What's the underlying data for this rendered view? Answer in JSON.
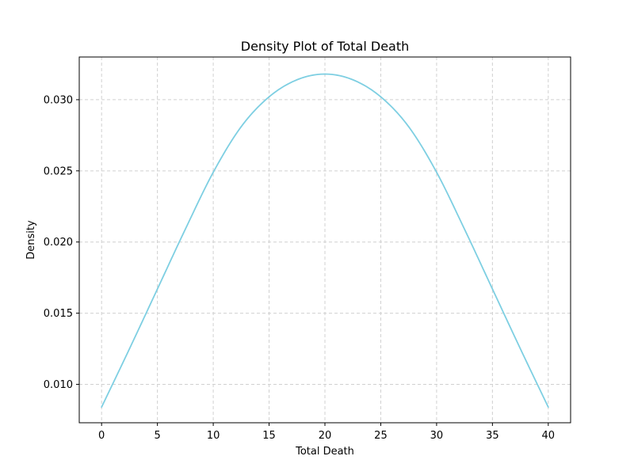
{
  "chart_data": {
    "type": "line",
    "title": "Density Plot of Total Death",
    "xlabel": "Total Death",
    "ylabel": "Density",
    "xlim": [
      -2,
      42
    ],
    "ylim": [
      0.0073,
      0.033
    ],
    "xticks": [
      0,
      5,
      10,
      15,
      20,
      25,
      30,
      35,
      40
    ],
    "xtick_labels": [
      "0",
      "5",
      "10",
      "15",
      "20",
      "25",
      "30",
      "35",
      "40"
    ],
    "yticks": [
      0.01,
      0.015,
      0.02,
      0.025,
      0.03
    ],
    "ytick_labels": [
      "0.010",
      "0.015",
      "0.020",
      "0.025",
      "0.030"
    ],
    "grid": true,
    "grid_style": "dashed",
    "legend": "none",
    "colors": {
      "line": "#7ecfe2",
      "grid": "#d0d0d0",
      "axis": "#000000"
    },
    "series": [
      {
        "x": [
          0,
          2.5,
          5,
          7.5,
          10,
          12.5,
          15,
          17.5,
          20,
          22.5,
          25,
          27.5,
          30,
          32.5,
          35,
          37.5,
          40
        ],
        "values": [
          0.0084,
          0.0125,
          0.0167,
          0.0209,
          0.0249,
          0.0281,
          0.0302,
          0.0314,
          0.0318,
          0.0314,
          0.0302,
          0.0281,
          0.0249,
          0.0209,
          0.0167,
          0.0125,
          0.0084
        ]
      }
    ]
  }
}
